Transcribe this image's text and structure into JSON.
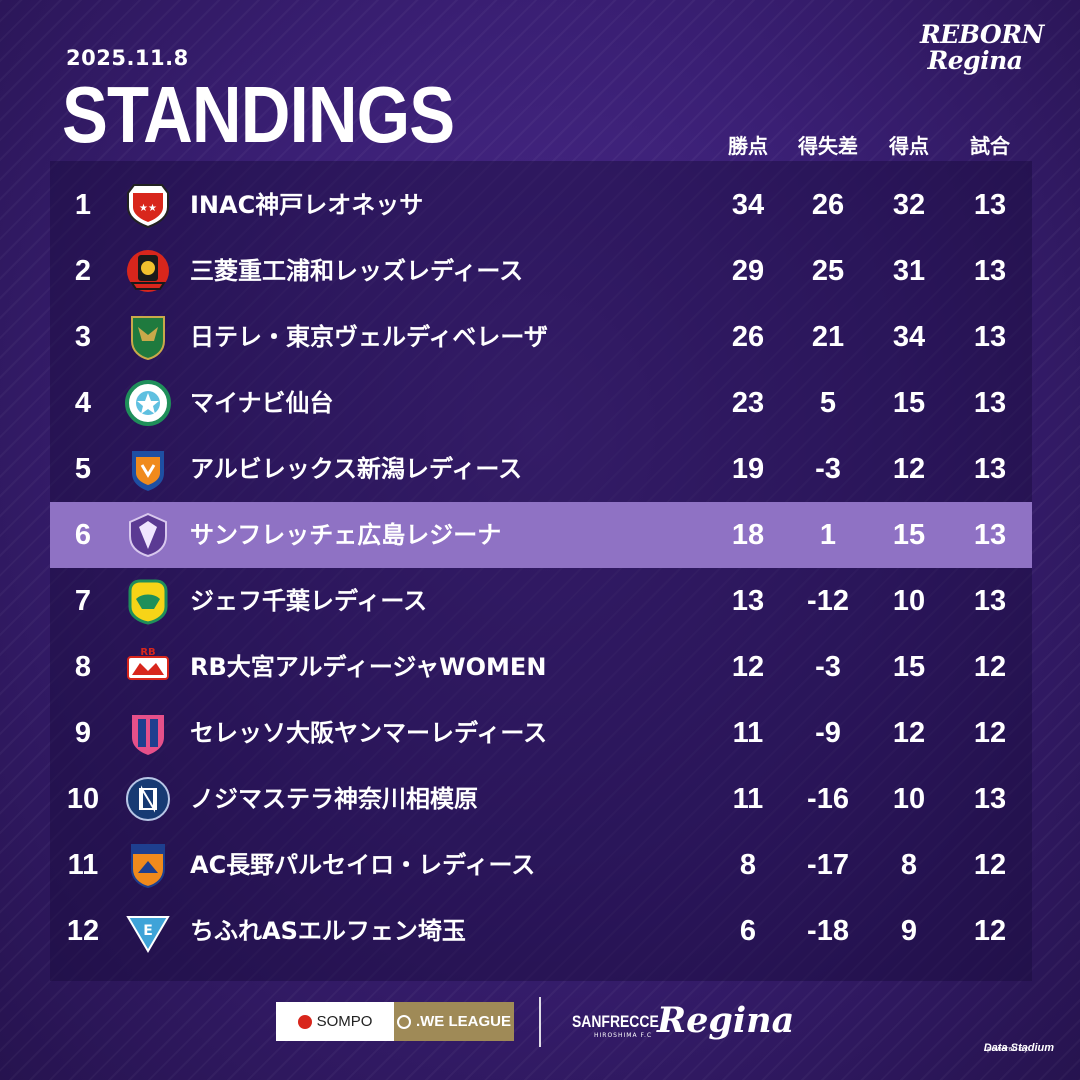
{
  "header": {
    "date": "2025.11.8",
    "title": "STANDINGS",
    "brand_line1": "REBORN",
    "brand_line2": "Regina"
  },
  "columns": [
    "勝点",
    "得失差",
    "得点",
    "試合"
  ],
  "rows": [
    {
      "rank": "1",
      "team": "INAC神戸レオネッサ",
      "pts": "34",
      "gd": "26",
      "gf": "32",
      "mp": "13",
      "logo_icon": "inac-kobe-crest-icon",
      "highlight": false
    },
    {
      "rank": "2",
      "team": "三菱重工浦和レッズレディース",
      "pts": "29",
      "gd": "25",
      "gf": "31",
      "mp": "13",
      "logo_icon": "urawa-reds-crest-icon",
      "highlight": false
    },
    {
      "rank": "3",
      "team": "日テレ・東京ヴェルディベレーザ",
      "pts": "26",
      "gd": "21",
      "gf": "34",
      "mp": "13",
      "logo_icon": "tokyo-verdy-crest-icon",
      "highlight": false
    },
    {
      "rank": "4",
      "team": "マイナビ仙台",
      "pts": "23",
      "gd": "5",
      "gf": "15",
      "mp": "13",
      "logo_icon": "mynavi-sendai-crest-icon",
      "highlight": false
    },
    {
      "rank": "5",
      "team": "アルビレックス新潟レディース",
      "pts": "19",
      "gd": "-3",
      "gf": "12",
      "mp": "13",
      "logo_icon": "albirex-niigata-crest-icon",
      "highlight": false
    },
    {
      "rank": "6",
      "team": "サンフレッチェ広島レジーナ",
      "pts": "18",
      "gd": "1",
      "gf": "15",
      "mp": "13",
      "logo_icon": "sanfrecce-hiroshima-crest-icon",
      "highlight": true
    },
    {
      "rank": "7",
      "team": "ジェフ千葉レディース",
      "pts": "13",
      "gd": "-12",
      "gf": "10",
      "mp": "13",
      "logo_icon": "jef-chiba-crest-icon",
      "highlight": false
    },
    {
      "rank": "8",
      "team": "RB大宮アルディージャWOMEN",
      "pts": "12",
      "gd": "-3",
      "gf": "15",
      "mp": "12",
      "logo_icon": "rb-omiya-crest-icon",
      "highlight": false
    },
    {
      "rank": "9",
      "team": "セレッソ大阪ヤンマーレディース",
      "pts": "11",
      "gd": "-9",
      "gf": "12",
      "mp": "12",
      "logo_icon": "cerezo-osaka-crest-icon",
      "highlight": false
    },
    {
      "rank": "10",
      "team": "ノジマステラ神奈川相模原",
      "pts": "11",
      "gd": "-16",
      "gf": "10",
      "mp": "13",
      "logo_icon": "nojima-stella-crest-icon",
      "highlight": false
    },
    {
      "rank": "11",
      "team": "AC長野パルセイロ・レディース",
      "pts": "8",
      "gd": "-17",
      "gf": "8",
      "mp": "12",
      "logo_icon": "ac-nagano-crest-icon",
      "highlight": false
    },
    {
      "rank": "12",
      "team": "ちふれASエルフェン埼玉",
      "pts": "6",
      "gd": "-18",
      "gf": "9",
      "mp": "12",
      "logo_icon": "elfen-saitama-crest-icon",
      "highlight": false
    }
  ],
  "footer": {
    "sompo": "SOMPO",
    "weleague": ".WE LEAGUE",
    "sanfrecce": "SANFRECCE",
    "sanfrecce_sub": "HIROSHIMA F.C",
    "regina": "Regina",
    "powered_by": "powered by",
    "data_stadium": "Data Stadium"
  },
  "colors": {
    "highlight_row": "#8f72c4",
    "background": "#3a1f74",
    "sompo_red": "#d8261c",
    "weleague_gold": "#9f8a57"
  }
}
